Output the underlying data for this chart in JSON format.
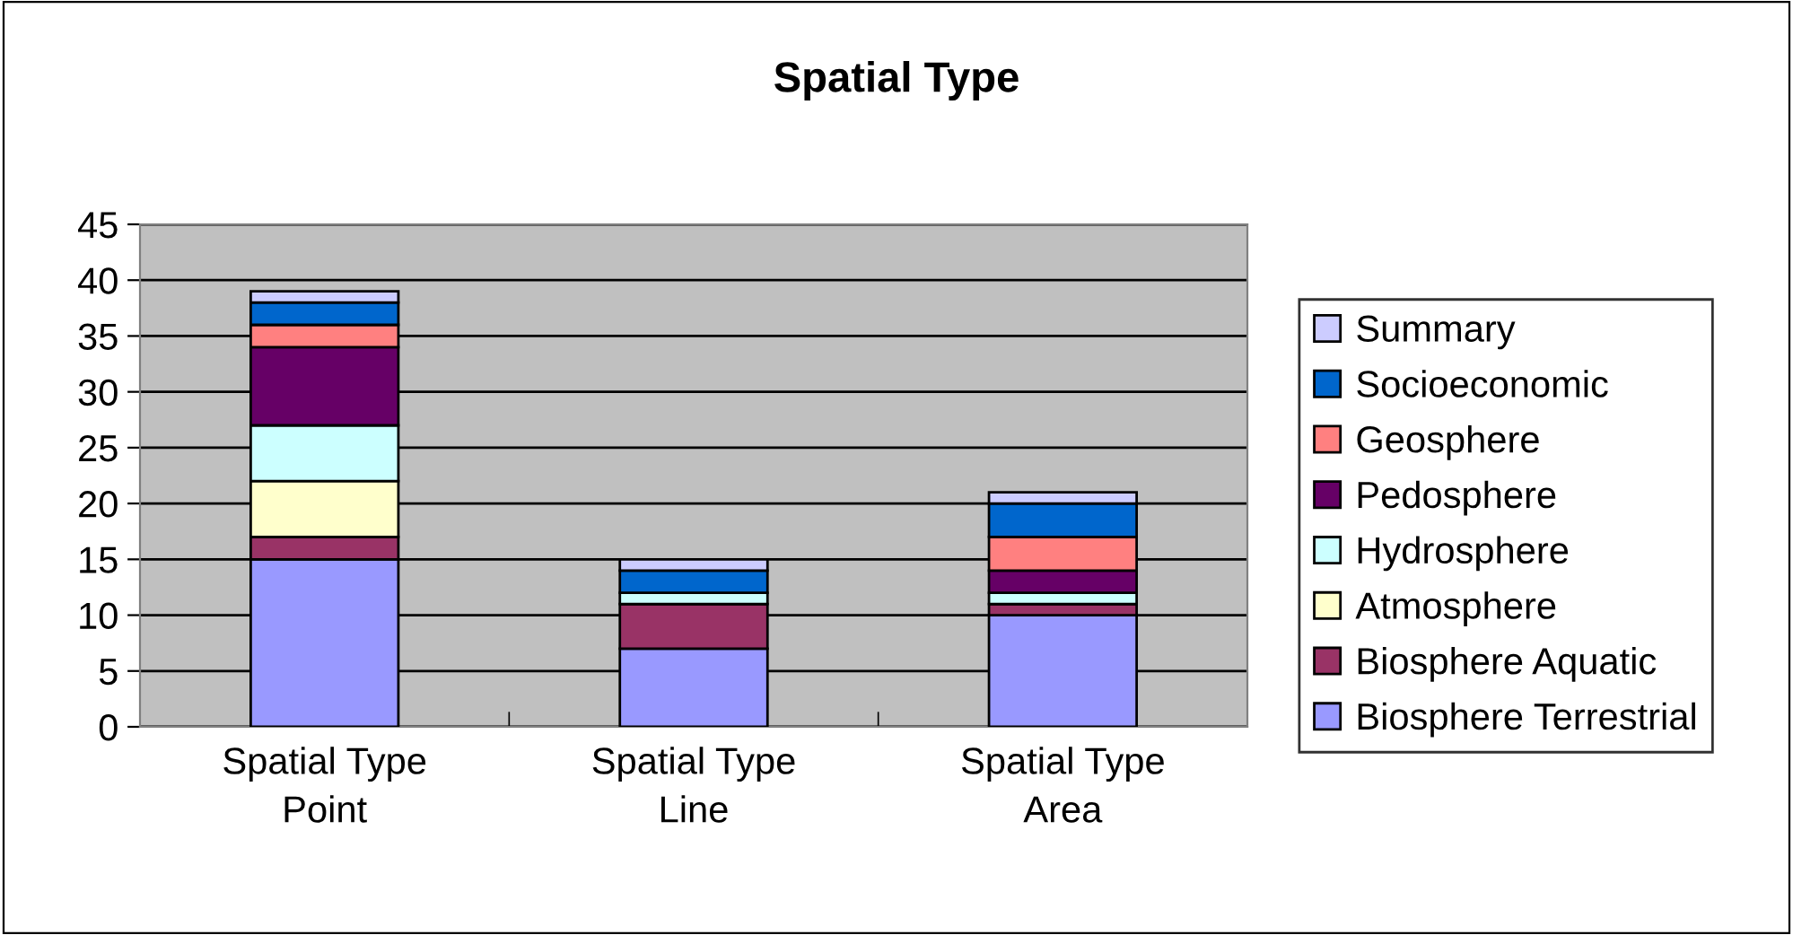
{
  "chart_data": {
    "type": "bar",
    "stacked": true,
    "title": "Spatial Type",
    "categories": [
      "Spatial Type\nPoint",
      "Spatial Type\nLine",
      "Spatial Type\nArea"
    ],
    "series": [
      {
        "name": "Biosphere Terrestrial",
        "color": "#9999ff",
        "values": [
          15,
          7,
          10
        ]
      },
      {
        "name": "Biosphere Aquatic",
        "color": "#993366",
        "values": [
          2,
          4,
          1
        ]
      },
      {
        "name": "Atmosphere",
        "color": "#ffffcc",
        "values": [
          5,
          0,
          0
        ]
      },
      {
        "name": "Hydrosphere",
        "color": "#ccffff",
        "values": [
          5,
          1,
          1
        ]
      },
      {
        "name": "Pedosphere",
        "color": "#660066",
        "values": [
          7,
          0,
          2
        ]
      },
      {
        "name": "Geosphere",
        "color": "#ff8080",
        "values": [
          2,
          0,
          3
        ]
      },
      {
        "name": "Socioeconomic",
        "color": "#0066cc",
        "values": [
          2,
          2,
          3
        ]
      },
      {
        "name": "Summary",
        "color": "#ccccff",
        "values": [
          1,
          1,
          1
        ]
      }
    ],
    "ylim": [
      0,
      45
    ],
    "yticks": [
      0,
      5,
      10,
      15,
      20,
      25,
      30,
      35,
      40,
      45
    ],
    "grid": "y",
    "legend": "right"
  }
}
